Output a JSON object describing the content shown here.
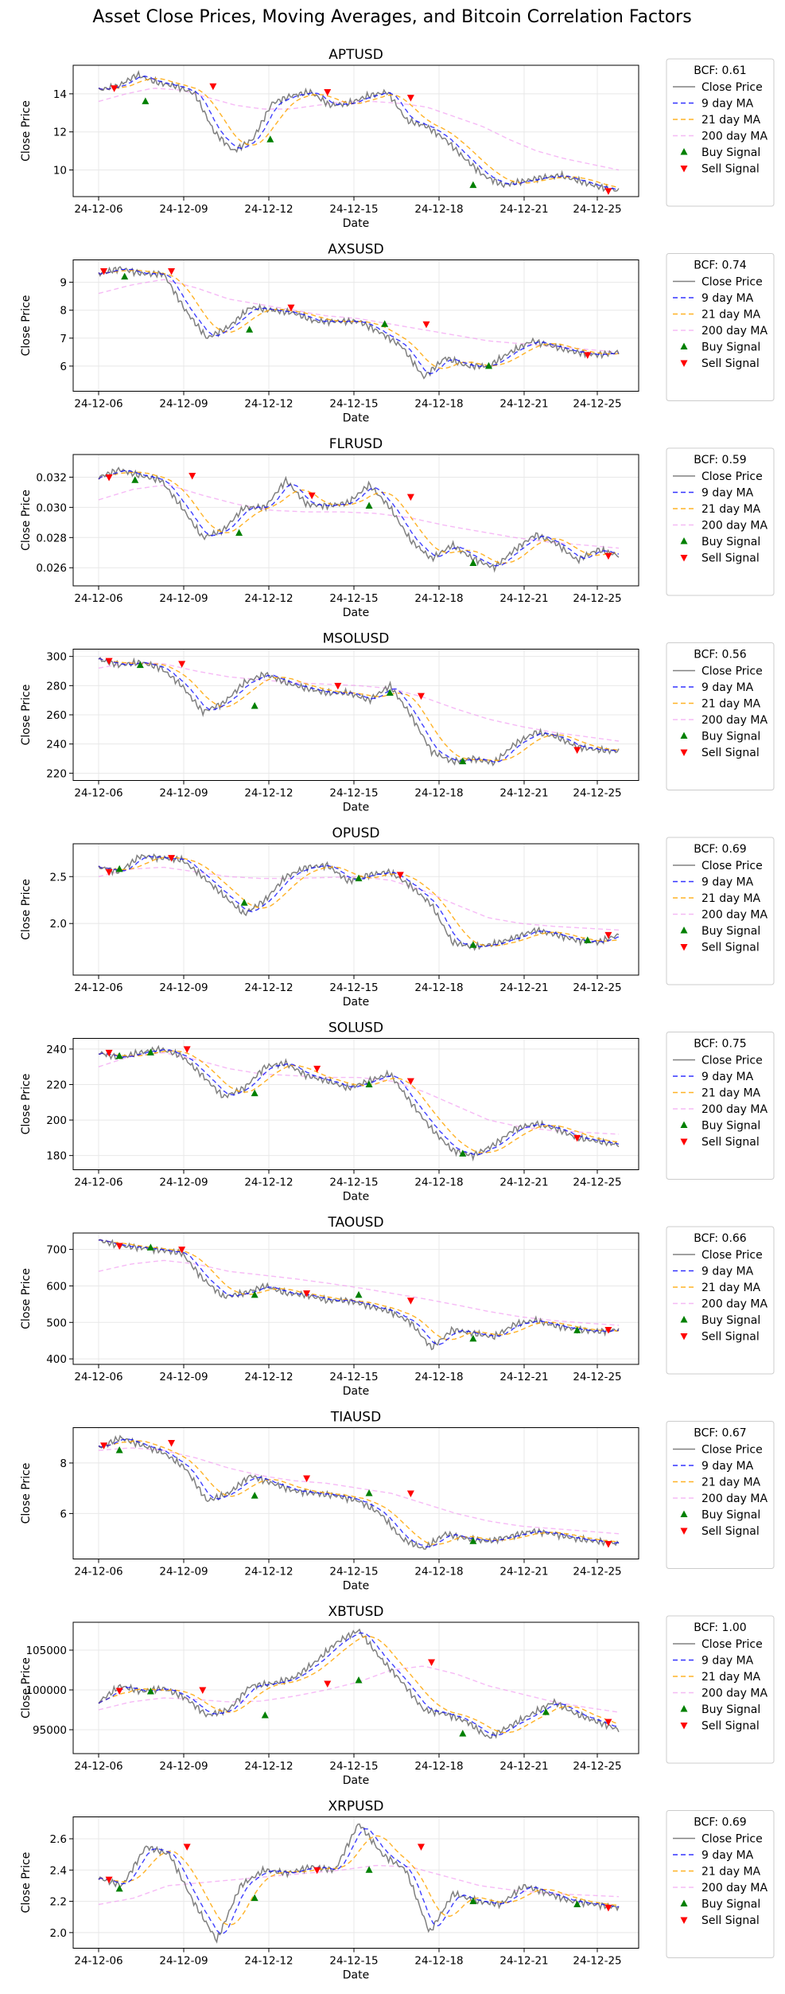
{
  "figure_title": "Asset Close Prices, Moving Averages, and Bitcoin Correlation Factors",
  "colors": {
    "close": "#808080",
    "ma9": "#0000ff",
    "ma21": "#ffa500",
    "ma200": "#ee82ee",
    "buy": "#008000",
    "sell": "#ff0000",
    "grid": "#e8e8e8"
  },
  "chart_data": [
    {
      "type": "line",
      "title": "APTUSD",
      "xlabel": "Date",
      "ylabel": "Close Price",
      "bcf_label": "BCF: 0.61",
      "x_ticks": [
        "24-12-06",
        "24-12-09",
        "24-12-12",
        "24-12-15",
        "24-12-18",
        "24-12-21",
        "24-12-25"
      ],
      "y_ticks": [
        "10",
        "12",
        "14"
      ],
      "ylim": [
        8.6,
        15.5
      ],
      "legend": [
        "Close Price",
        "9 day MA",
        "21 day MA",
        "200 day MA",
        "Buy Signal",
        "Sell Signal"
      ],
      "close_path": [
        14.2,
        14.4,
        15.0,
        14.6,
        14.4,
        14.0,
        12.0,
        11.0,
        11.6,
        13.5,
        13.9,
        14.1,
        13.4,
        13.5,
        13.9,
        14.1,
        12.6,
        12.3,
        11.6,
        10.6,
        9.7,
        9.2,
        9.4,
        9.6,
        9.7,
        9.4,
        9.1,
        8.9
      ],
      "ma200_path": [
        13.6,
        14.0,
        14.3,
        14.2,
        13.8,
        13.4,
        13.2,
        13.2,
        13.4,
        13.6,
        13.6,
        13.5,
        13.3,
        12.8,
        12.3,
        11.6,
        11.0,
        10.6,
        10.3,
        10.0
      ],
      "buy_signals": [
        [
          0.09,
          13.6
        ],
        [
          0.33,
          11.6
        ],
        [
          0.72,
          9.2
        ]
      ],
      "sell_signals": [
        [
          0.03,
          14.3
        ],
        [
          0.22,
          14.4
        ],
        [
          0.44,
          14.1
        ],
        [
          0.6,
          13.8
        ],
        [
          0.98,
          8.9
        ]
      ]
    },
    {
      "type": "line",
      "title": "AXSUSD",
      "xlabel": "Date",
      "ylabel": "Close Price",
      "bcf_label": "BCF: 0.74",
      "x_ticks": [
        "24-12-06",
        "24-12-09",
        "24-12-12",
        "24-12-15",
        "24-12-18",
        "24-12-21",
        "24-12-25"
      ],
      "y_ticks": [
        "6",
        "7",
        "8",
        "9"
      ],
      "ylim": [
        5.1,
        9.8
      ],
      "legend": [
        "Close Price",
        "9 day MA",
        "21 day MA",
        "200 day MA",
        "Buy Signal",
        "Sell Signal"
      ],
      "close_path": [
        9.3,
        9.5,
        9.3,
        9.3,
        8.0,
        7.0,
        7.4,
        8.1,
        8.0,
        7.9,
        7.6,
        7.6,
        7.6,
        7.2,
        6.7,
        5.6,
        6.3,
        6.0,
        6.0,
        6.5,
        6.9,
        6.7,
        6.5,
        6.4,
        6.5
      ],
      "ma200_path": [
        8.6,
        8.9,
        9.1,
        8.8,
        8.4,
        8.2,
        8.0,
        7.8,
        7.7,
        7.5,
        7.3,
        7.1,
        6.9,
        6.8,
        6.7,
        6.6,
        6.5
      ],
      "buy_signals": [
        [
          0.05,
          9.2
        ],
        [
          0.29,
          7.3
        ],
        [
          0.55,
          7.5
        ],
        [
          0.75,
          6.0
        ]
      ],
      "sell_signals": [
        [
          0.01,
          9.4
        ],
        [
          0.14,
          9.4
        ],
        [
          0.37,
          8.1
        ],
        [
          0.63,
          7.5
        ],
        [
          0.94,
          6.4
        ]
      ]
    },
    {
      "type": "line",
      "title": "FLRUSD",
      "xlabel": "Date",
      "ylabel": "Close Price",
      "bcf_label": "BCF: 0.59",
      "x_ticks": [
        "24-12-06",
        "24-12-09",
        "24-12-12",
        "24-12-15",
        "24-12-18",
        "24-12-21",
        "24-12-25"
      ],
      "y_ticks": [
        "0.026",
        "0.028",
        "0.030",
        "0.032"
      ],
      "ylim": [
        0.0248,
        0.0335
      ],
      "legend": [
        "Close Price",
        "9 day MA",
        "21 day MA",
        "200 day MA",
        "Buy Signal",
        "Sell Signal"
      ],
      "close_path": [
        0.032,
        0.0325,
        0.0321,
        0.0318,
        0.03,
        0.028,
        0.0285,
        0.03,
        0.03,
        0.0318,
        0.0302,
        0.0301,
        0.0303,
        0.0315,
        0.03,
        0.0278,
        0.0266,
        0.0275,
        0.0266,
        0.026,
        0.0272,
        0.0282,
        0.0276,
        0.0265,
        0.0272,
        0.0268
      ],
      "ma200_path": [
        0.0305,
        0.0312,
        0.0315,
        0.0308,
        0.0302,
        0.0298,
        0.0297,
        0.0297,
        0.0296,
        0.0293,
        0.0288,
        0.0284,
        0.028,
        0.0277,
        0.0275,
        0.0273
      ],
      "buy_signals": [
        [
          0.07,
          0.0318
        ],
        [
          0.27,
          0.0283
        ],
        [
          0.52,
          0.0301
        ],
        [
          0.72,
          0.0263
        ]
      ],
      "sell_signals": [
        [
          0.02,
          0.032
        ],
        [
          0.18,
          0.0321
        ],
        [
          0.41,
          0.0308
        ],
        [
          0.6,
          0.0307
        ],
        [
          0.98,
          0.0268
        ]
      ]
    },
    {
      "type": "line",
      "title": "MSOLUSD",
      "xlabel": "Date",
      "ylabel": "Close Price",
      "bcf_label": "BCF: 0.56",
      "x_ticks": [
        "24-12-06",
        "24-12-09",
        "24-12-12",
        "24-12-15",
        "24-12-18",
        "24-12-21",
        "24-12-25"
      ],
      "y_ticks": [
        "220",
        "240",
        "260",
        "280",
        "300"
      ],
      "ylim": [
        215,
        305
      ],
      "legend": [
        "Close Price",
        "9 day MA",
        "21 day MA",
        "200 day MA",
        "Buy Signal",
        "Sell Signal"
      ],
      "close_path": [
        298,
        294,
        296,
        292,
        280,
        262,
        268,
        282,
        288,
        282,
        278,
        275,
        275,
        270,
        280,
        260,
        235,
        228,
        230,
        227,
        240,
        248,
        245,
        238,
        236,
        235
      ],
      "ma200_path": [
        292,
        296,
        295,
        290,
        286,
        284,
        282,
        281,
        280,
        278,
        272,
        264,
        257,
        252,
        248,
        245,
        242
      ],
      "buy_signals": [
        [
          0.08,
          294
        ],
        [
          0.3,
          266
        ],
        [
          0.56,
          275
        ],
        [
          0.7,
          228
        ]
      ],
      "sell_signals": [
        [
          0.02,
          297
        ],
        [
          0.16,
          295
        ],
        [
          0.46,
          280
        ],
        [
          0.62,
          273
        ],
        [
          0.92,
          236
        ]
      ]
    },
    {
      "type": "line",
      "title": "OPUSD",
      "xlabel": "Date",
      "ylabel": "Close Price",
      "bcf_label": "BCF: 0.69",
      "x_ticks": [
        "24-12-06",
        "24-12-09",
        "24-12-12",
        "24-12-15",
        "24-12-18",
        "24-12-21",
        "24-12-25"
      ],
      "y_ticks": [
        "2.0",
        "2.5"
      ],
      "ylim": [
        1.45,
        2.85
      ],
      "legend": [
        "Close Price",
        "9 day MA",
        "21 day MA",
        "200 day MA",
        "Buy Signal",
        "Sell Signal"
      ],
      "close_path": [
        2.6,
        2.55,
        2.72,
        2.7,
        2.68,
        2.5,
        2.3,
        2.1,
        2.25,
        2.5,
        2.6,
        2.62,
        2.45,
        2.52,
        2.55,
        2.4,
        2.2,
        1.8,
        1.75,
        1.78,
        1.85,
        1.93,
        1.88,
        1.82,
        1.8,
        1.88
      ],
      "ma200_path": [
        2.5,
        2.58,
        2.6,
        2.55,
        2.5,
        2.48,
        2.48,
        2.49,
        2.5,
        2.46,
        2.35,
        2.2,
        2.06,
        2.0,
        1.97,
        1.95,
        1.93
      ],
      "buy_signals": [
        [
          0.04,
          2.58
        ],
        [
          0.28,
          2.22
        ],
        [
          0.5,
          2.48
        ],
        [
          0.72,
          1.77
        ],
        [
          0.94,
          1.82
        ]
      ],
      "sell_signals": [
        [
          0.02,
          2.55
        ],
        [
          0.14,
          2.7
        ],
        [
          0.58,
          2.52
        ],
        [
          0.98,
          1.88
        ]
      ]
    },
    {
      "type": "line",
      "title": "SOLUSD",
      "xlabel": "Date",
      "ylabel": "Close Price",
      "bcf_label": "BCF: 0.75",
      "x_ticks": [
        "24-12-06",
        "24-12-09",
        "24-12-12",
        "24-12-15",
        "24-12-18",
        "24-12-21",
        "24-12-25"
      ],
      "y_ticks": [
        "180",
        "200",
        "220",
        "240"
      ],
      "ylim": [
        172,
        246
      ],
      "legend": [
        "Close Price",
        "9 day MA",
        "21 day MA",
        "200 day MA",
        "Buy Signal",
        "Sell Signal"
      ],
      "close_path": [
        238,
        235,
        238,
        240,
        236,
        225,
        213,
        218,
        230,
        232,
        225,
        222,
        218,
        222,
        226,
        210,
        195,
        183,
        180,
        186,
        195,
        198,
        195,
        190,
        188,
        186
      ],
      "ma200_path": [
        230,
        236,
        238,
        234,
        229,
        226,
        225,
        224,
        224,
        222,
        216,
        208,
        200,
        196,
        194,
        193,
        192
      ],
      "buy_signals": [
        [
          0.04,
          236
        ],
        [
          0.1,
          238
        ],
        [
          0.3,
          215
        ],
        [
          0.52,
          220
        ],
        [
          0.7,
          181
        ]
      ],
      "sell_signals": [
        [
          0.02,
          238
        ],
        [
          0.17,
          240
        ],
        [
          0.42,
          229
        ],
        [
          0.6,
          222
        ],
        [
          0.92,
          190
        ]
      ]
    },
    {
      "type": "line",
      "title": "TAOUSD",
      "xlabel": "Date",
      "ylabel": "Close Price",
      "bcf_label": "BCF: 0.66",
      "x_ticks": [
        "24-12-06",
        "24-12-09",
        "24-12-12",
        "24-12-15",
        "24-12-18",
        "24-12-21",
        "24-12-25"
      ],
      "y_ticks": [
        "400",
        "500",
        "600",
        "700"
      ],
      "ylim": [
        385,
        745
      ],
      "legend": [
        "Close Price",
        "9 day MA",
        "21 day MA",
        "200 day MA",
        "Buy Signal",
        "Sell Signal"
      ],
      "close_path": [
        725,
        710,
        705,
        698,
        690,
        620,
        570,
        580,
        600,
        580,
        575,
        560,
        560,
        545,
        530,
        500,
        430,
        480,
        470,
        460,
        495,
        505,
        490,
        480,
        475,
        480
      ],
      "ma200_path": [
        640,
        660,
        670,
        660,
        640,
        630,
        620,
        608,
        595,
        580,
        565,
        548,
        530,
        515,
        505,
        498,
        492
      ],
      "buy_signals": [
        [
          0.1,
          705
        ],
        [
          0.3,
          575
        ],
        [
          0.5,
          575
        ],
        [
          0.72,
          455
        ],
        [
          0.92,
          478
        ]
      ],
      "sell_signals": [
        [
          0.04,
          710
        ],
        [
          0.16,
          700
        ],
        [
          0.4,
          580
        ],
        [
          0.6,
          560
        ],
        [
          0.98,
          480
        ]
      ]
    },
    {
      "type": "line",
      "title": "TIAUSD",
      "xlabel": "Date",
      "ylabel": "Close Price",
      "bcf_label": "BCF: 0.67",
      "x_ticks": [
        "24-12-06",
        "24-12-09",
        "24-12-12",
        "24-12-15",
        "24-12-18",
        "24-12-21",
        "24-12-25"
      ],
      "y_ticks": [
        "6",
        "8"
      ],
      "ylim": [
        4.2,
        9.4
      ],
      "legend": [
        "Close Price",
        "9 day MA",
        "21 day MA",
        "200 day MA",
        "Buy Signal",
        "Sell Signal"
      ],
      "close_path": [
        8.6,
        9.0,
        8.7,
        8.4,
        7.8,
        6.5,
        6.8,
        7.5,
        7.2,
        6.9,
        6.8,
        6.7,
        6.5,
        6.0,
        5.0,
        4.6,
        5.2,
        5.0,
        4.9,
        5.1,
        5.3,
        5.2,
        5.0,
        4.9,
        4.8
      ],
      "ma200_path": [
        8.5,
        8.6,
        8.5,
        8.2,
        7.8,
        7.5,
        7.3,
        7.2,
        7.0,
        6.8,
        6.4,
        6.0,
        5.7,
        5.5,
        5.4,
        5.3,
        5.2
      ],
      "buy_signals": [
        [
          0.04,
          8.5
        ],
        [
          0.3,
          6.7
        ],
        [
          0.52,
          6.8
        ],
        [
          0.72,
          4.9
        ]
      ],
      "sell_signals": [
        [
          0.01,
          8.7
        ],
        [
          0.14,
          8.8
        ],
        [
          0.4,
          7.4
        ],
        [
          0.6,
          6.8
        ],
        [
          0.98,
          4.8
        ]
      ]
    },
    {
      "type": "line",
      "title": "XBTUSD",
      "xlabel": "Date",
      "ylabel": "Close Price",
      "bcf_label": "BCF: 1.00",
      "x_ticks": [
        "24-12-06",
        "24-12-09",
        "24-12-12",
        "24-12-15",
        "24-12-18",
        "24-12-21",
        "24-12-25"
      ],
      "y_ticks": [
        "95000",
        "100000",
        "105000"
      ],
      "ylim": [
        92000,
        108500
      ],
      "legend": [
        "Close Price",
        "9 day MA",
        "21 day MA",
        "200 day MA",
        "Buy Signal",
        "Sell Signal"
      ],
      "close_path": [
        98500,
        100500,
        99800,
        100200,
        99000,
        96800,
        97500,
        100500,
        100800,
        101500,
        103500,
        106000,
        107500,
        104000,
        101000,
        97500,
        97000,
        96000,
        94000,
        95500,
        97000,
        98500,
        97000,
        96000,
        95000
      ],
      "ma200_path": [
        97500,
        98500,
        99000,
        98800,
        98500,
        98600,
        99200,
        100000,
        101000,
        102500,
        103000,
        102000,
        100500,
        99500,
        98500,
        97800,
        97200
      ],
      "buy_signals": [
        [
          0.1,
          99800
        ],
        [
          0.32,
          96800
        ],
        [
          0.5,
          101200
        ],
        [
          0.7,
          94500
        ],
        [
          0.86,
          97200
        ]
      ],
      "sell_signals": [
        [
          0.04,
          99900
        ],
        [
          0.2,
          100000
        ],
        [
          0.44,
          100800
        ],
        [
          0.64,
          103500
        ],
        [
          0.98,
          96000
        ]
      ]
    },
    {
      "type": "line",
      "title": "XRPUSD",
      "xlabel": "Date",
      "ylabel": "Close Price",
      "bcf_label": "BCF: 0.69",
      "x_ticks": [
        "24-12-06",
        "24-12-09",
        "24-12-12",
        "24-12-15",
        "24-12-18",
        "24-12-21",
        "24-12-25"
      ],
      "y_ticks": [
        "2.0",
        "2.2",
        "2.4",
        "2.6"
      ],
      "ylim": [
        1.9,
        2.74
      ],
      "legend": [
        "Close Price",
        "9 day MA",
        "21 day MA",
        "200 day MA",
        "Buy Signal",
        "Sell Signal"
      ],
      "close_path": [
        2.35,
        2.3,
        2.55,
        2.5,
        2.2,
        1.95,
        2.3,
        2.4,
        2.38,
        2.42,
        2.4,
        2.7,
        2.5,
        2.4,
        2.0,
        2.25,
        2.2,
        2.18,
        2.3,
        2.25,
        2.2,
        2.18,
        2.16
      ],
      "ma200_path": [
        2.18,
        2.22,
        2.3,
        2.32,
        2.34,
        2.36,
        2.38,
        2.4,
        2.43,
        2.42,
        2.36,
        2.3,
        2.27,
        2.25,
        2.24,
        2.23
      ],
      "buy_signals": [
        [
          0.04,
          2.28
        ],
        [
          0.3,
          2.22
        ],
        [
          0.52,
          2.4
        ],
        [
          0.72,
          2.2
        ],
        [
          0.92,
          2.18
        ]
      ],
      "sell_signals": [
        [
          0.02,
          2.34
        ],
        [
          0.17,
          2.55
        ],
        [
          0.42,
          2.4
        ],
        [
          0.62,
          2.55
        ],
        [
          0.98,
          2.16
        ]
      ]
    }
  ]
}
